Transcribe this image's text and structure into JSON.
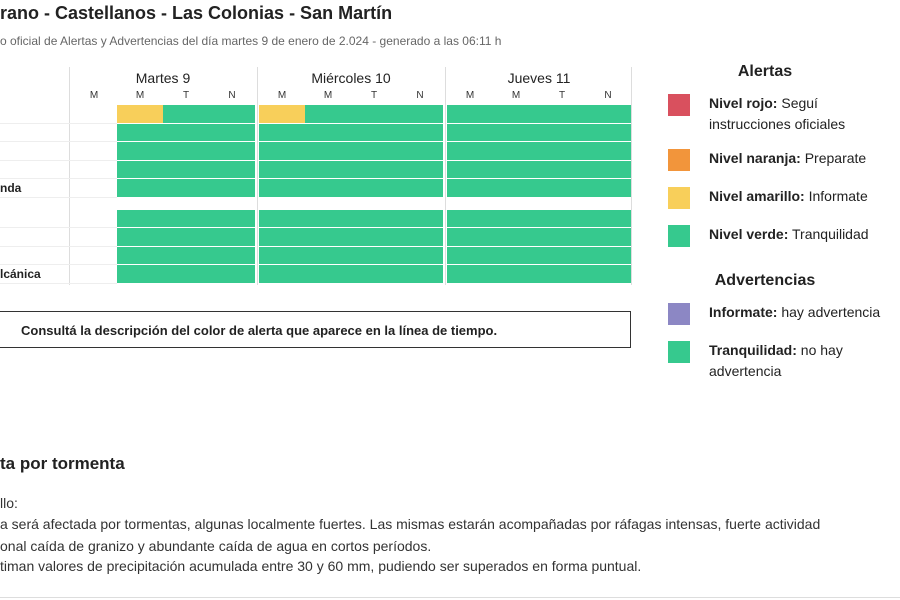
{
  "header": {
    "title": "rano - Castellanos - Las Colonias - San Martín",
    "subtitle": "o oficial de Alertas y Advertencias del día martes 9 de enero de 2.024 - generado a las 06:11 h"
  },
  "timeline": {
    "days": [
      {
        "name": "Martes 9",
        "periods": [
          "M",
          "M",
          "T",
          "N"
        ]
      },
      {
        "name": "Miércoles 10",
        "periods": [
          "M",
          "M",
          "T",
          "N"
        ]
      },
      {
        "name": "Jueves 11",
        "periods": [
          "M",
          "M",
          "T",
          "N"
        ]
      }
    ],
    "groups": [
      {
        "rows": [
          {
            "cells": [
              null,
              "#f8cf5a",
              "#36c98e",
              "#36c98e",
              "#f8cf5a",
              "#36c98e",
              "#36c98e",
              "#36c98e",
              "#36c98e",
              "#36c98e",
              "#36c98e",
              "#36c98e"
            ]
          },
          {
            "cells": [
              null,
              "#36c98e",
              "#36c98e",
              "#36c98e",
              "#36c98e",
              "#36c98e",
              "#36c98e",
              "#36c98e",
              "#36c98e",
              "#36c98e",
              "#36c98e",
              "#36c98e"
            ]
          },
          {
            "cells": [
              null,
              "#36c98e",
              "#36c98e",
              "#36c98e",
              "#36c98e",
              "#36c98e",
              "#36c98e",
              "#36c98e",
              "#36c98e",
              "#36c98e",
              "#36c98e",
              "#36c98e"
            ]
          },
          {
            "cells": [
              null,
              "#36c98e",
              "#36c98e",
              "#36c98e",
              "#36c98e",
              "#36c98e",
              "#36c98e",
              "#36c98e",
              "#36c98e",
              "#36c98e",
              "#36c98e",
              "#36c98e"
            ]
          },
          {
            "label": "nda",
            "cells": [
              null,
              "#36c98e",
              "#36c98e",
              "#36c98e",
              "#36c98e",
              "#36c98e",
              "#36c98e",
              "#36c98e",
              "#36c98e",
              "#36c98e",
              "#36c98e",
              "#36c98e"
            ]
          }
        ]
      },
      {
        "rows": [
          {
            "cells": [
              null,
              "#36c98e",
              "#36c98e",
              "#36c98e",
              "#36c98e",
              "#36c98e",
              "#36c98e",
              "#36c98e",
              "#36c98e",
              "#36c98e",
              "#36c98e",
              "#36c98e"
            ]
          },
          {
            "cells": [
              null,
              "#36c98e",
              "#36c98e",
              "#36c98e",
              "#36c98e",
              "#36c98e",
              "#36c98e",
              "#36c98e",
              "#36c98e",
              "#36c98e",
              "#36c98e",
              "#36c98e"
            ]
          },
          {
            "cells": [
              null,
              "#36c98e",
              "#36c98e",
              "#36c98e",
              "#36c98e",
              "#36c98e",
              "#36c98e",
              "#36c98e",
              "#36c98e",
              "#36c98e",
              "#36c98e",
              "#36c98e"
            ]
          },
          {
            "label": "lcánica",
            "cells": [
              null,
              "#36c98e",
              "#36c98e",
              "#36c98e",
              "#36c98e",
              "#36c98e",
              "#36c98e",
              "#36c98e",
              "#36c98e",
              "#36c98e",
              "#36c98e",
              "#36c98e"
            ]
          }
        ]
      }
    ],
    "note": "Consultá la descripción del color de alerta que aparece en la línea de tiempo."
  },
  "legend": [
    {
      "title": "Alertas",
      "items": [
        {
          "color": "#d9505e",
          "label": "Nivel rojo:",
          "text": "Seguí instrucciones oficiales"
        },
        {
          "color": "#f2953b",
          "label": "Nivel naranja:",
          "text": "Preparate"
        },
        {
          "color": "#f8cf5a",
          "label": "Nivel amarillo:",
          "text": "Informate"
        },
        {
          "color": "#36c98e",
          "label": "Nivel verde:",
          "text": "Tranquilidad"
        }
      ]
    },
    {
      "title": "Advertencias",
      "items": [
        {
          "color": "#8c87c4",
          "label": "Informate:",
          "text": "hay advertencia"
        },
        {
          "color": "#36c98e",
          "label": "Tranquilidad:",
          "text": "no hay advertencia"
        }
      ]
    }
  ],
  "report": {
    "title": "ta por tormenta",
    "lines": [
      "llo:",
      "a será afectada por tormentas, algunas localmente fuertes. Las mismas estarán acompañadas por ráfagas intensas, fuerte actividad",
      "onal caída de granizo y abundante caída de agua en cortos períodos.",
      "timan valores de precipitación acumulada entre 30 y 60 mm, pudiendo ser superados en forma puntual."
    ]
  }
}
